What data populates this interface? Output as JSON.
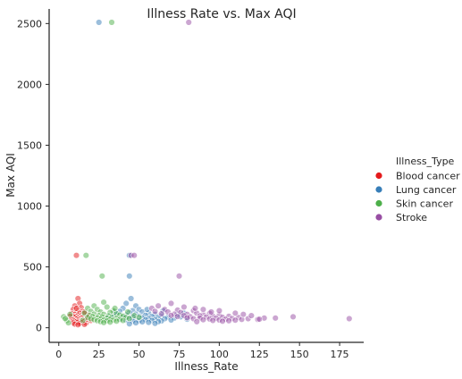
{
  "chart_data": {
    "type": "scatter",
    "title": "Illness Rate vs. Max AQI",
    "xlabel": "Illness_Rate",
    "ylabel": "Max AQI",
    "xlim": [
      -6,
      190
    ],
    "ylim": [
      -120,
      2620
    ],
    "xticks": [
      "0",
      "25",
      "50",
      "75",
      "100",
      "125",
      "150",
      "175"
    ],
    "yticks": [
      "0",
      "500",
      "1000",
      "1500",
      "2000",
      "2500"
    ],
    "grid": false,
    "legend": {
      "title": "Illness_Type",
      "placement": "right"
    },
    "series": [
      {
        "name": "Blood cancer",
        "color": "#e41a1c",
        "points": [
          [
            11,
            595
          ],
          [
            12,
            240
          ],
          [
            13,
            200
          ],
          [
            10,
            180
          ],
          [
            14,
            165
          ],
          [
            9,
            150
          ],
          [
            12,
            140
          ],
          [
            15,
            135
          ],
          [
            11,
            125
          ],
          [
            13,
            120
          ],
          [
            8,
            115
          ],
          [
            10,
            110
          ],
          [
            12,
            105
          ],
          [
            14,
            100
          ],
          [
            16,
            98
          ],
          [
            9,
            95
          ],
          [
            11,
            92
          ],
          [
            13,
            90
          ],
          [
            15,
            88
          ],
          [
            10,
            85
          ],
          [
            12,
            82
          ],
          [
            14,
            80
          ],
          [
            17,
            78
          ],
          [
            8,
            75
          ],
          [
            11,
            72
          ],
          [
            13,
            70
          ],
          [
            15,
            68
          ],
          [
            9,
            65
          ],
          [
            12,
            62
          ],
          [
            14,
            60
          ],
          [
            16,
            58
          ],
          [
            10,
            55
          ],
          [
            13,
            52
          ],
          [
            11,
            50
          ],
          [
            15,
            48
          ],
          [
            12,
            45
          ],
          [
            14,
            42
          ],
          [
            9,
            40
          ],
          [
            17,
            38
          ],
          [
            13,
            35
          ],
          [
            10,
            30
          ],
          [
            16,
            28
          ],
          [
            12,
            25
          ],
          [
            18,
            70
          ],
          [
            19,
            90
          ],
          [
            20,
            60
          ],
          [
            7,
            95
          ],
          [
            18,
            110
          ],
          [
            16,
            130
          ],
          [
            11,
            160
          ]
        ]
      },
      {
        "name": "Lung cancer",
        "color": "#377eb8",
        "points": [
          [
            25,
            2510
          ],
          [
            44,
            595
          ],
          [
            44,
            425
          ],
          [
            45,
            240
          ],
          [
            42,
            200
          ],
          [
            48,
            180
          ],
          [
            40,
            160
          ],
          [
            50,
            150
          ],
          [
            46,
            140
          ],
          [
            38,
            135
          ],
          [
            52,
            130
          ],
          [
            44,
            125
          ],
          [
            56,
            120
          ],
          [
            36,
            115
          ],
          [
            48,
            112
          ],
          [
            60,
            110
          ],
          [
            42,
            105
          ],
          [
            54,
            102
          ],
          [
            64,
            100
          ],
          [
            34,
            98
          ],
          [
            50,
            95
          ],
          [
            58,
            92
          ],
          [
            46,
            90
          ],
          [
            68,
            88
          ],
          [
            40,
            86
          ],
          [
            62,
            84
          ],
          [
            52,
            82
          ],
          [
            72,
            80
          ],
          [
            44,
            78
          ],
          [
            56,
            76
          ],
          [
            66,
            74
          ],
          [
            38,
            72
          ],
          [
            48,
            70
          ],
          [
            60,
            68
          ],
          [
            54,
            66
          ],
          [
            70,
            64
          ],
          [
            42,
            62
          ],
          [
            58,
            60
          ],
          [
            50,
            58
          ],
          [
            64,
            56
          ],
          [
            46,
            54
          ],
          [
            62,
            50
          ],
          [
            52,
            48
          ],
          [
            56,
            44
          ],
          [
            48,
            40
          ],
          [
            60,
            36
          ],
          [
            44,
            32
          ],
          [
            76,
            90
          ],
          [
            80,
            70
          ],
          [
            74,
            110
          ],
          [
            35,
            130
          ],
          [
            32,
            100
          ],
          [
            30,
            80
          ],
          [
            55,
            150
          ],
          [
            65,
            140
          ],
          [
            78,
            120
          ]
        ]
      },
      {
        "name": "Skin cancer",
        "color": "#4daf4a",
        "points": [
          [
            33,
            2510
          ],
          [
            17,
            595
          ],
          [
            27,
            425
          ],
          [
            28,
            210
          ],
          [
            22,
            180
          ],
          [
            30,
            170
          ],
          [
            18,
            160
          ],
          [
            24,
            150
          ],
          [
            34,
            140
          ],
          [
            20,
            135
          ],
          [
            26,
            130
          ],
          [
            32,
            125
          ],
          [
            16,
            120
          ],
          [
            36,
            115
          ],
          [
            22,
            112
          ],
          [
            28,
            110
          ],
          [
            38,
            105
          ],
          [
            19,
            102
          ],
          [
            25,
            100
          ],
          [
            31,
            98
          ],
          [
            40,
            95
          ],
          [
            21,
            92
          ],
          [
            27,
            90
          ],
          [
            33,
            88
          ],
          [
            42,
            86
          ],
          [
            18,
            84
          ],
          [
            24,
            82
          ],
          [
            30,
            80
          ],
          [
            36,
            78
          ],
          [
            44,
            76
          ],
          [
            20,
            74
          ],
          [
            26,
            72
          ],
          [
            32,
            70
          ],
          [
            38,
            68
          ],
          [
            22,
            66
          ],
          [
            28,
            64
          ],
          [
            34,
            62
          ],
          [
            40,
            60
          ],
          [
            24,
            58
          ],
          [
            30,
            56
          ],
          [
            36,
            54
          ],
          [
            26,
            50
          ],
          [
            32,
            46
          ],
          [
            28,
            42
          ],
          [
            3,
            90
          ],
          [
            5,
            60
          ],
          [
            7,
            110
          ],
          [
            6,
            40
          ],
          [
            4,
            75
          ],
          [
            15,
            60
          ],
          [
            47,
            100
          ],
          [
            50,
            85
          ],
          [
            43,
            130
          ],
          [
            35,
            160
          ]
        ]
      },
      {
        "name": "Stroke",
        "color": "#984ea3",
        "points": [
          [
            81,
            2510
          ],
          [
            45,
            595
          ],
          [
            47,
            595
          ],
          [
            75,
            425
          ],
          [
            70,
            200
          ],
          [
            62,
            180
          ],
          [
            78,
            170
          ],
          [
            58,
            160
          ],
          [
            66,
            150
          ],
          [
            74,
            145
          ],
          [
            84,
            140
          ],
          [
            60,
            135
          ],
          [
            68,
            130
          ],
          [
            76,
            125
          ],
          [
            86,
            120
          ],
          [
            94,
            118
          ],
          [
            64,
            115
          ],
          [
            72,
            112
          ],
          [
            80,
            110
          ],
          [
            90,
            108
          ],
          [
            100,
            105
          ],
          [
            70,
            102
          ],
          [
            78,
            100
          ],
          [
            88,
            98
          ],
          [
            96,
            96
          ],
          [
            106,
            94
          ],
          [
            74,
            92
          ],
          [
            82,
            90
          ],
          [
            92,
            88
          ],
          [
            102,
            86
          ],
          [
            112,
            84
          ],
          [
            80,
            82
          ],
          [
            88,
            80
          ],
          [
            98,
            78
          ],
          [
            108,
            76
          ],
          [
            118,
            75
          ],
          [
            84,
            74
          ],
          [
            94,
            72
          ],
          [
            104,
            70
          ],
          [
            114,
            69
          ],
          [
            124,
            68
          ],
          [
            90,
            66
          ],
          [
            100,
            64
          ],
          [
            110,
            62
          ],
          [
            96,
            60
          ],
          [
            106,
            58
          ],
          [
            102,
            54
          ],
          [
            86,
            50
          ],
          [
            128,
            80
          ],
          [
            135,
            80
          ],
          [
            146,
            90
          ],
          [
            181,
            75
          ],
          [
            120,
            100
          ],
          [
            115,
            110
          ],
          [
            110,
            120
          ],
          [
            95,
            130
          ],
          [
            100,
            140
          ],
          [
            90,
            150
          ],
          [
            85,
            160
          ],
          [
            125,
            70
          ]
        ]
      }
    ]
  }
}
